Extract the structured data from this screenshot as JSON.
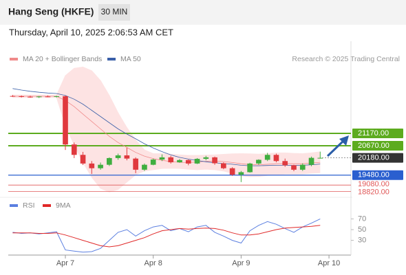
{
  "header": {
    "title": "Hang Seng (HKFE)",
    "interval": "30 MIN",
    "timestamp": "Thursday, April 10, 2025 2:06:53 AM CET"
  },
  "chart_data": [
    {
      "type": "candlestick",
      "credit": "Research © 2025 Trading Central",
      "open": [
        22680,
        22670,
        22650,
        22640,
        22660,
        22650,
        22670,
        20720,
        20300,
        19950,
        19760,
        19900,
        20170,
        20280,
        20150,
        19700,
        19900,
        20110,
        20200,
        20000,
        20090,
        19950,
        20140,
        20200,
        19960,
        19760,
        19500,
        19600,
        19950,
        20100,
        20300,
        20050,
        19880,
        19700,
        19900,
        20180,
        null,
        null,
        null
      ],
      "high": [
        22720,
        22700,
        22690,
        22680,
        22700,
        22690,
        22700,
        20800,
        20420,
        20050,
        19990,
        20200,
        20350,
        20590,
        20200,
        19950,
        20150,
        20320,
        20260,
        20130,
        20110,
        20170,
        20260,
        20230,
        20000,
        19800,
        19650,
        19980,
        20120,
        20380,
        20350,
        20150,
        19900,
        19960,
        20230,
        20430,
        null,
        null,
        null
      ],
      "low": [
        22640,
        22620,
        22610,
        22600,
        22630,
        22620,
        20500,
        20170,
        19890,
        19530,
        19700,
        19850,
        20100,
        20080,
        19560,
        19650,
        19880,
        20050,
        19950,
        19980,
        19880,
        19930,
        20080,
        19900,
        19720,
        19450,
        19200,
        19580,
        19900,
        20050,
        20000,
        19820,
        19640,
        19650,
        19840,
        20150,
        null,
        null,
        null
      ],
      "close": [
        22670,
        22650,
        22640,
        22660,
        22650,
        22670,
        20720,
        20300,
        19950,
        19760,
        19900,
        20170,
        20280,
        20150,
        19700,
        19900,
        20110,
        20200,
        20000,
        20090,
        19950,
        20140,
        20200,
        19960,
        19760,
        19500,
        19600,
        19950,
        20100,
        20300,
        20050,
        19880,
        19700,
        19900,
        20180,
        20180,
        null,
        null,
        null
      ],
      "up_color": "#3fae3f",
      "down_color": "#e0393e",
      "series": [
        {
          "name": "MA 20 + Bollinger Bands",
          "color": "#f08a8a",
          "band_color": "#fde3e3",
          "values": [
            22670,
            22670,
            22670,
            22670,
            22670,
            22670,
            22500,
            22250,
            21950,
            21650,
            21350,
            21050,
            20800,
            20600,
            20400,
            20250,
            20150,
            20080,
            20030,
            20000,
            19990,
            20010,
            20040,
            20050,
            20030,
            19990,
            19940,
            19910,
            19900,
            19920,
            19940,
            19950,
            19940,
            19940,
            19970,
            20000,
            null,
            null,
            null
          ],
          "upper": [
            22720,
            22720,
            22720,
            22720,
            22720,
            22720,
            23500,
            23800,
            23850,
            23700,
            23300,
            22700,
            22000,
            21400,
            20900,
            20500,
            20350,
            20350,
            20330,
            20300,
            20280,
            20280,
            20290,
            20300,
            20320,
            20340,
            20350,
            20340,
            20330,
            20350,
            20380,
            20380,
            20360,
            20350,
            20380,
            20420,
            null,
            null,
            null
          ],
          "lower": [
            22620,
            22620,
            22620,
            22620,
            22620,
            22620,
            21500,
            20700,
            20000,
            19400,
            18950,
            18800,
            18900,
            19200,
            19500,
            19650,
            19700,
            19750,
            19760,
            19750,
            19720,
            19700,
            19720,
            19700,
            19650,
            19550,
            19450,
            19420,
            19430,
            19470,
            19500,
            19520,
            19520,
            19530,
            19560,
            19580,
            null,
            null,
            null
          ]
        },
        {
          "name": "MA 50",
          "color": "#3a5fa8",
          "values": [
            22980,
            22920,
            22870,
            22830,
            22800,
            22780,
            22700,
            22550,
            22350,
            22100,
            21850,
            21600,
            21350,
            21140,
            20950,
            20750,
            20580,
            20430,
            20300,
            20200,
            20130,
            20070,
            20020,
            19980,
            19950,
            19920,
            19880,
            19860,
            19860,
            19870,
            19880,
            19880,
            19870,
            19880,
            19900,
            19930,
            null,
            null,
            null
          ]
        }
      ],
      "ylim": [
        18640,
        23920
      ],
      "levels": [
        {
          "value": 21170,
          "label": "21170.00",
          "color": "#5cab1e"
        },
        {
          "value": 20670,
          "label": "20670.00",
          "color": "#5cab1e"
        },
        {
          "value": 20180,
          "label": "20180.00",
          "color": "#333333"
        },
        {
          "value": 19480,
          "label": "19480.00",
          "color": "#2a5fcf"
        },
        {
          "value": 19080,
          "label": "19080.00",
          "color": "#e05858"
        },
        {
          "value": 18820,
          "label": "18820.00",
          "color": "#e05858"
        }
      ]
    },
    {
      "type": "line",
      "categories": [
        null,
        null,
        null,
        null,
        null,
        null,
        "Apr 7",
        null,
        null,
        null,
        null,
        null,
        null,
        null,
        null,
        null,
        "Apr 8",
        null,
        null,
        null,
        null,
        null,
        null,
        null,
        null,
        null,
        "Apr 9",
        null,
        null,
        null,
        null,
        null,
        null,
        null,
        null,
        null,
        "Apr 10",
        null,
        null
      ],
      "series": [
        {
          "name": "RSI",
          "color": "#5b7fe0",
          "values": [
            45,
            43,
            44,
            42,
            44,
            46,
            12,
            10,
            8,
            9,
            15,
            30,
            45,
            50,
            38,
            48,
            55,
            58,
            48,
            52,
            46,
            55,
            58,
            45,
            38,
            30,
            25,
            48,
            58,
            65,
            60,
            52,
            45,
            55,
            62,
            70,
            null,
            null,
            null
          ]
        },
        {
          "name": "9MA",
          "color": "#e02828",
          "values": [
            44,
            44,
            44,
            43,
            43,
            44,
            40,
            35,
            30,
            25,
            20,
            18,
            20,
            25,
            30,
            35,
            42,
            48,
            50,
            52,
            51,
            52,
            53,
            52,
            49,
            44,
            40,
            40,
            42,
            46,
            50,
            53,
            54,
            55,
            56,
            58,
            null,
            null,
            null
          ]
        }
      ],
      "ylim": [
        0,
        100
      ],
      "yticks": [
        30,
        50,
        70
      ]
    }
  ]
}
